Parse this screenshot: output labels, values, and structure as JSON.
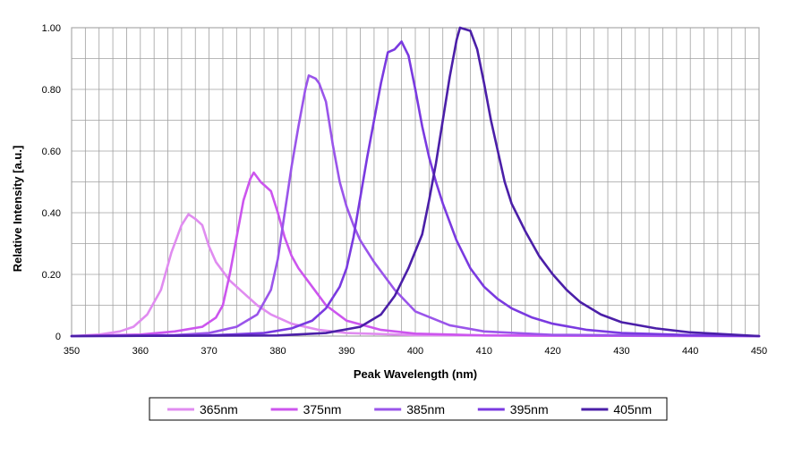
{
  "chart_data": {
    "type": "line",
    "xlabel": "Peak Wavelength (nm)",
    "ylabel": "Relative Intensity [a.u.]",
    "xlim": [
      350,
      450
    ],
    "ylim": [
      0,
      1.0
    ],
    "x_ticks": [
      "350",
      "360",
      "370",
      "380",
      "390",
      "400",
      "410",
      "420",
      "430",
      "440",
      "450"
    ],
    "y_ticks": [
      "0",
      "0.20",
      "0.40",
      "0.60",
      "0.80",
      "1.00"
    ],
    "grid": true,
    "legend_position": "bottom",
    "series": [
      {
        "name": "365nm",
        "color": "#e08cf0",
        "points": [
          [
            350,
            0
          ],
          [
            354,
            0.005
          ],
          [
            357,
            0.015
          ],
          [
            359,
            0.03
          ],
          [
            361,
            0.07
          ],
          [
            363,
            0.15
          ],
          [
            364.5,
            0.27
          ],
          [
            366,
            0.36
          ],
          [
            367,
            0.395
          ],
          [
            368,
            0.38
          ],
          [
            369,
            0.36
          ],
          [
            370,
            0.29
          ],
          [
            371,
            0.24
          ],
          [
            373,
            0.18
          ],
          [
            375,
            0.14
          ],
          [
            377,
            0.1
          ],
          [
            379,
            0.07
          ],
          [
            382,
            0.04
          ],
          [
            386,
            0.02
          ],
          [
            390,
            0.01
          ],
          [
            400,
            0.003
          ],
          [
            450,
            0
          ]
        ]
      },
      {
        "name": "375nm",
        "color": "#cc55ee",
        "points": [
          [
            350,
            0
          ],
          [
            360,
            0.005
          ],
          [
            365,
            0.015
          ],
          [
            369,
            0.03
          ],
          [
            371,
            0.06
          ],
          [
            372,
            0.1
          ],
          [
            373,
            0.2
          ],
          [
            374,
            0.32
          ],
          [
            375,
            0.44
          ],
          [
            376,
            0.51
          ],
          [
            376.5,
            0.53
          ],
          [
            377.5,
            0.5
          ],
          [
            379,
            0.47
          ],
          [
            380,
            0.4
          ],
          [
            381,
            0.32
          ],
          [
            382,
            0.26
          ],
          [
            383,
            0.22
          ],
          [
            385,
            0.16
          ],
          [
            387,
            0.1
          ],
          [
            390,
            0.05
          ],
          [
            395,
            0.02
          ],
          [
            400,
            0.008
          ],
          [
            410,
            0.002
          ],
          [
            450,
            0
          ]
        ]
      },
      {
        "name": "385nm",
        "color": "#9a55ea",
        "points": [
          [
            350,
            0
          ],
          [
            365,
            0.003
          ],
          [
            370,
            0.01
          ],
          [
            374,
            0.03
          ],
          [
            377,
            0.07
          ],
          [
            379,
            0.15
          ],
          [
            380,
            0.25
          ],
          [
            381,
            0.4
          ],
          [
            382,
            0.55
          ],
          [
            383,
            0.68
          ],
          [
            384,
            0.8
          ],
          [
            384.5,
            0.845
          ],
          [
            385.5,
            0.835
          ],
          [
            386,
            0.82
          ],
          [
            387,
            0.76
          ],
          [
            388,
            0.62
          ],
          [
            389,
            0.5
          ],
          [
            390,
            0.42
          ],
          [
            391,
            0.36
          ],
          [
            392,
            0.31
          ],
          [
            394,
            0.24
          ],
          [
            397,
            0.15
          ],
          [
            400,
            0.08
          ],
          [
            405,
            0.035
          ],
          [
            410,
            0.015
          ],
          [
            420,
            0.004
          ],
          [
            450,
            0
          ]
        ]
      },
      {
        "name": "395nm",
        "color": "#7a3ae0",
        "points": [
          [
            350,
            0
          ],
          [
            370,
            0.002
          ],
          [
            378,
            0.01
          ],
          [
            382,
            0.025
          ],
          [
            385,
            0.05
          ],
          [
            387,
            0.09
          ],
          [
            389,
            0.16
          ],
          [
            390,
            0.22
          ],
          [
            391,
            0.32
          ],
          [
            392,
            0.45
          ],
          [
            393,
            0.58
          ],
          [
            394,
            0.7
          ],
          [
            395,
            0.82
          ],
          [
            396,
            0.92
          ],
          [
            397,
            0.93
          ],
          [
            398,
            0.955
          ],
          [
            399,
            0.91
          ],
          [
            400,
            0.8
          ],
          [
            401,
            0.68
          ],
          [
            402,
            0.58
          ],
          [
            403,
            0.5
          ],
          [
            404,
            0.43
          ],
          [
            406,
            0.31
          ],
          [
            408,
            0.22
          ],
          [
            410,
            0.16
          ],
          [
            412,
            0.12
          ],
          [
            414,
            0.09
          ],
          [
            417,
            0.06
          ],
          [
            420,
            0.04
          ],
          [
            425,
            0.02
          ],
          [
            430,
            0.01
          ],
          [
            440,
            0.003
          ],
          [
            450,
            0
          ]
        ]
      },
      {
        "name": "405nm",
        "color": "#4b1fa8",
        "points": [
          [
            350,
            0
          ],
          [
            380,
            0.002
          ],
          [
            387,
            0.01
          ],
          [
            392,
            0.03
          ],
          [
            395,
            0.07
          ],
          [
            397,
            0.13
          ],
          [
            399,
            0.22
          ],
          [
            401,
            0.33
          ],
          [
            402,
            0.44
          ],
          [
            403,
            0.56
          ],
          [
            404,
            0.7
          ],
          [
            405,
            0.84
          ],
          [
            406,
            0.96
          ],
          [
            406.5,
            1.0
          ],
          [
            408,
            0.99
          ],
          [
            409,
            0.93
          ],
          [
            410,
            0.82
          ],
          [
            411,
            0.7
          ],
          [
            412,
            0.6
          ],
          [
            413,
            0.5
          ],
          [
            414,
            0.43
          ],
          [
            416,
            0.34
          ],
          [
            418,
            0.26
          ],
          [
            420,
            0.2
          ],
          [
            422,
            0.15
          ],
          [
            424,
            0.11
          ],
          [
            427,
            0.07
          ],
          [
            430,
            0.045
          ],
          [
            435,
            0.025
          ],
          [
            440,
            0.012
          ],
          [
            445,
            0.006
          ],
          [
            450,
            0
          ]
        ]
      }
    ]
  }
}
